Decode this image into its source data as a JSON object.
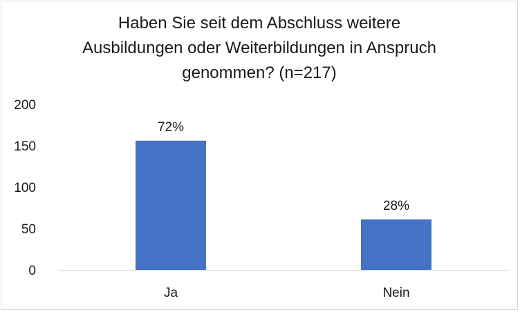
{
  "chart_data": {
    "type": "bar",
    "title_lines": [
      "Haben Sie seit dem Abschluss weitere",
      "Ausbildungen oder Weiterbildungen in Anspruch",
      "genommen? (n=217)"
    ],
    "categories": [
      "Ja",
      "Nein"
    ],
    "values": [
      156,
      61
    ],
    "data_labels": [
      "72%",
      "28%"
    ],
    "y_ticks": [
      "0",
      "50",
      "100",
      "150",
      "200"
    ],
    "ylim": [
      0,
      200
    ],
    "grid": false,
    "legend": "none",
    "bar_color": "#4472c4"
  }
}
